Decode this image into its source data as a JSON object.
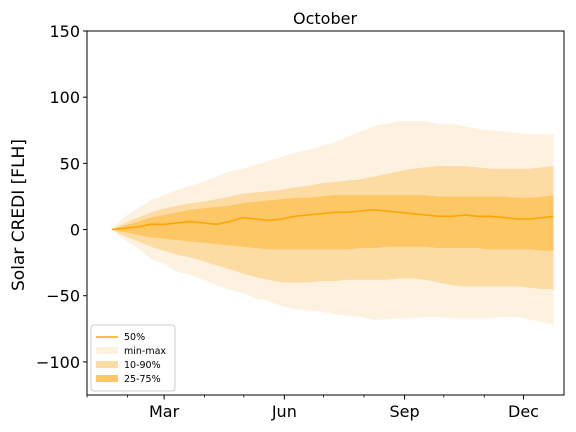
{
  "chart_data": {
    "type": "area",
    "title": "October",
    "xlabel": "",
    "ylabel": "Solar CREDI [FLH]",
    "x_unit": "day of year",
    "xlim": [
      1,
      366
    ],
    "ylim": [
      -125,
      150
    ],
    "yticks": [
      -100,
      -50,
      0,
      50,
      100,
      150
    ],
    "ytick_labels": [
      "−100",
      "−50",
      "0",
      "50",
      "100",
      "150"
    ],
    "xticks": [
      {
        "day": 60,
        "label": "Mar"
      },
      {
        "day": 152,
        "label": "Jun"
      },
      {
        "day": 244,
        "label": "Sep"
      },
      {
        "day": 335,
        "label": "Dec"
      }
    ],
    "x_minor_ticks": [
      1,
      32,
      91,
      121,
      182,
      213,
      274,
      305
    ],
    "grid": false,
    "legend": {
      "placement": "lower-left",
      "entries": [
        "50%",
        "min-max",
        "10-90%",
        "25-75%"
      ]
    },
    "colors": {
      "median": "#ffa500",
      "minmax": "#fdf1e0",
      "p10_90": "#fddca3",
      "p25_75": "#fec765"
    },
    "x": [
      20,
      30,
      40,
      50,
      60,
      70,
      80,
      90,
      100,
      110,
      120,
      130,
      140,
      150,
      160,
      170,
      180,
      190,
      200,
      210,
      220,
      230,
      240,
      250,
      260,
      270,
      280,
      290,
      300,
      310,
      320,
      330,
      340,
      350,
      358
    ],
    "series": [
      {
        "name": "50%",
        "values": [
          0,
          1,
          2,
          4,
          4,
          5,
          6,
          5,
          4,
          6,
          9,
          8,
          7,
          8,
          10,
          11,
          12,
          13,
          13,
          14,
          15,
          14,
          13,
          12,
          11,
          10,
          10,
          11,
          10,
          10,
          9,
          8,
          8,
          9,
          10
        ]
      },
      {
        "name": "min",
        "values": [
          0,
          -8,
          -14,
          -22,
          -26,
          -32,
          -34,
          -38,
          -42,
          -45,
          -48,
          -52,
          -54,
          -58,
          -60,
          -61,
          -62,
          -64,
          -65,
          -66,
          -68,
          -68,
          -67,
          -67,
          -66,
          -66,
          -67,
          -67,
          -67,
          -67,
          -66,
          -66,
          -68,
          -70,
          -72
        ]
      },
      {
        "name": "max",
        "values": [
          0,
          10,
          16,
          22,
          26,
          30,
          33,
          36,
          40,
          44,
          46,
          49,
          52,
          55,
          58,
          60,
          63,
          66,
          70,
          74,
          78,
          80,
          82,
          82,
          82,
          80,
          80,
          78,
          76,
          75,
          74,
          73,
          72,
          72,
          72
        ]
      },
      {
        "name": "p10",
        "values": [
          0,
          -5,
          -9,
          -13,
          -16,
          -19,
          -21,
          -24,
          -27,
          -30,
          -33,
          -36,
          -38,
          -40,
          -40,
          -40,
          -39,
          -39,
          -38,
          -38,
          -38,
          -38,
          -37,
          -37,
          -38,
          -40,
          -42,
          -43,
          -43,
          -43,
          -43,
          -43,
          -44,
          -45,
          -45
        ]
      },
      {
        "name": "p90",
        "values": [
          0,
          5,
          9,
          13,
          16,
          18,
          20,
          21,
          23,
          25,
          27,
          28,
          29,
          30,
          32,
          33,
          35,
          36,
          37,
          38,
          40,
          42,
          44,
          46,
          47,
          48,
          48,
          48,
          47,
          46,
          46,
          46,
          46,
          47,
          48
        ]
      },
      {
        "name": "p25",
        "values": [
          0,
          -2,
          -4,
          -6,
          -7,
          -8,
          -9,
          -10,
          -11,
          -12,
          -13,
          -14,
          -15,
          -15,
          -15,
          -15,
          -15,
          -15,
          -15,
          -14,
          -14,
          -13,
          -13,
          -13,
          -13,
          -14,
          -14,
          -14,
          -14,
          -15,
          -15,
          -15,
          -15,
          -16,
          -16
        ]
      },
      {
        "name": "p75",
        "values": [
          0,
          3,
          6,
          9,
          11,
          13,
          15,
          16,
          17,
          18,
          20,
          21,
          22,
          23,
          24,
          24,
          25,
          26,
          26,
          26,
          26,
          26,
          26,
          26,
          26,
          25,
          25,
          25,
          25,
          25,
          25,
          24,
          24,
          25,
          26
        ]
      }
    ]
  }
}
